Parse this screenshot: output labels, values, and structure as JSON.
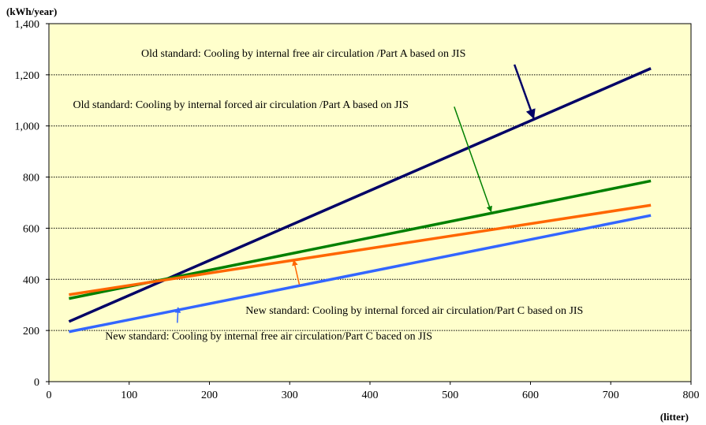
{
  "chart_data": {
    "type": "line",
    "ylabel": "(kWh/year)",
    "xlabel": "(litter)",
    "xlim": [
      0,
      800
    ],
    "ylim": [
      0,
      1400
    ],
    "x_ticks": [
      0,
      100,
      200,
      300,
      400,
      500,
      600,
      700,
      800
    ],
    "x_tick_labels": [
      "0",
      "100",
      "200",
      "300",
      "400",
      "500",
      "600",
      "700",
      "800"
    ],
    "y_ticks": [
      0,
      200,
      400,
      600,
      800,
      1000,
      1200,
      1400
    ],
    "y_tick_labels": [
      "0",
      "200",
      "400",
      "600",
      "800",
      "1,000",
      "1,200",
      "1,400"
    ],
    "grid": "horizontal-dotted",
    "plot_background": "#ffffcc",
    "series": [
      {
        "name": "Old standard: Cooling by internal free air circulation /Part A based on JIS",
        "color": "#000066",
        "x": [
          25,
          750
        ],
        "y": [
          235,
          1225
        ],
        "label_text": "Old standard: Cooling by internal free air circulation /Part A based on JIS",
        "label_at": [
          115,
          1270
        ],
        "arrow_from": [
          580,
          1240
        ],
        "arrow_to": [
          604,
          1030
        ]
      },
      {
        "name": "Old standard: Cooling by internal forced air circulation /Part A based on JIS",
        "color": "#008000",
        "x": [
          25,
          750
        ],
        "y": [
          325,
          785
        ],
        "label_text": "Old standard: Cooling by internal forced air circulation /Part A based on JIS",
        "label_at": [
          30,
          1070
        ],
        "arrow_from": [
          505,
          1075
        ],
        "arrow_to": [
          551,
          665
        ]
      },
      {
        "name": "New standard: Cooling by internal forced air circulation/Part C based on JIS",
        "color": "#ff6600",
        "x": [
          25,
          750
        ],
        "y": [
          340,
          690
        ],
        "label_text": "New standard: Cooling by internal forced air circulation/Part C based on JIS",
        "label_at": [
          245,
          265
        ],
        "arrow_from": [
          312,
          380
        ],
        "arrow_to": [
          305,
          475
        ]
      },
      {
        "name": "New standard: Cooling by internal free air circulation/Part C baced on JIS",
        "color": "#3366ff",
        "x": [
          25,
          750
        ],
        "y": [
          195,
          650
        ],
        "label_text": "New standard: Cooling by internal free air circulation/Part C baced on JIS",
        "label_at": [
          70,
          165
        ],
        "arrow_from": [
          160,
          230
        ],
        "arrow_to": [
          161,
          290
        ]
      }
    ]
  }
}
